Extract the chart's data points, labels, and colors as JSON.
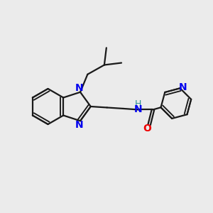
{
  "bg_color": "#ebebeb",
  "bond_color": "#1a1a1a",
  "N_color": "#0000ee",
  "O_color": "#ee0000",
  "H_color": "#2a9090",
  "font_size": 10,
  "linewidth": 1.6,
  "xlim": [
    0,
    10
  ],
  "ylim": [
    0,
    10
  ]
}
